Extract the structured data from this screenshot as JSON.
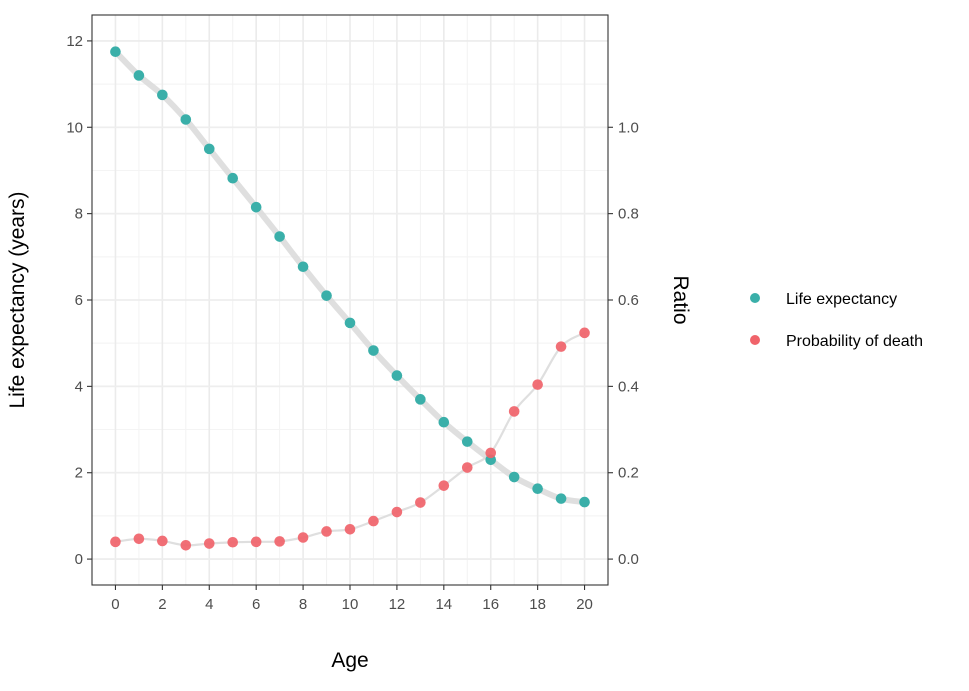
{
  "chart_data": {
    "type": "scatter",
    "title": "",
    "xlabel": "Age",
    "ylabel": "Life expectancy (years)",
    "y2label": "Ratio",
    "xlim": [
      -1,
      21
    ],
    "ylim": [
      -0.6,
      12.6
    ],
    "y2lim": [
      -0.06,
      1.26
    ],
    "xticks": [
      0,
      2,
      4,
      6,
      8,
      10,
      12,
      14,
      16,
      18,
      20
    ],
    "yticks": [
      0,
      2,
      4,
      6,
      8,
      10,
      12
    ],
    "y2ticks": [
      0.0,
      0.2,
      0.4,
      0.6,
      0.8,
      1.0
    ],
    "y2tick_labels": [
      "0.0",
      "0.2",
      "0.4",
      "0.6",
      "0.8",
      "1.0"
    ],
    "grid": true,
    "legend_position": "right",
    "x": [
      0,
      1,
      2,
      3,
      4,
      5,
      6,
      7,
      8,
      9,
      10,
      11,
      12,
      13,
      14,
      15,
      16,
      17,
      18,
      19,
      20
    ],
    "series": [
      {
        "name": "Life expectancy",
        "axis": "left",
        "color": "#3aafa9",
        "values": [
          11.75,
          11.2,
          10.75,
          10.18,
          9.5,
          8.82,
          8.15,
          7.47,
          6.77,
          6.1,
          5.47,
          4.83,
          4.25,
          3.7,
          3.17,
          2.72,
          2.3,
          1.9,
          1.63,
          1.4,
          1.32
        ]
      },
      {
        "name": "Probability of death",
        "axis": "right",
        "color": "#f0636a",
        "values": [
          0.04,
          0.047,
          0.042,
          0.032,
          0.036,
          0.039,
          0.04,
          0.041,
          0.05,
          0.064,
          0.069,
          0.088,
          0.109,
          0.131,
          0.17,
          0.212,
          0.246,
          0.342,
          0.404,
          0.492,
          0.524
        ]
      }
    ]
  }
}
